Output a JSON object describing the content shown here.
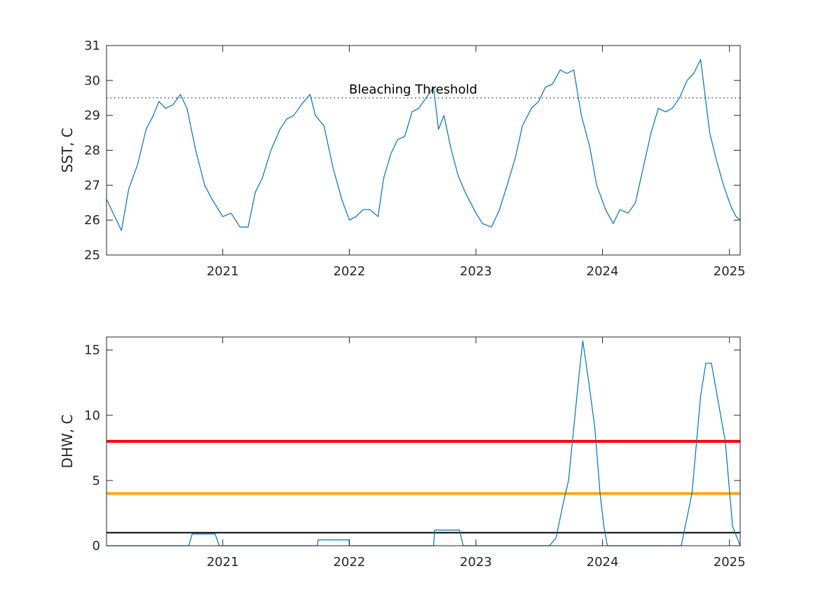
{
  "colors": {
    "series": "#0072bd",
    "threshold_dotted": "#1f1f9f",
    "alert_red": "#ff0000",
    "alert_orange": "#ffa500",
    "alert_black": "#000000",
    "axis": "#262626"
  },
  "chart_data": [
    {
      "type": "line",
      "xlabel": "",
      "ylabel": "SST, C",
      "xlim": [
        "2020-02-01",
        "2025-02-01"
      ],
      "ylim": [
        25,
        31
      ],
      "x_ticks": [
        {
          "date": "2021-01-01",
          "label": "2021"
        },
        {
          "date": "2022-01-01",
          "label": "2022"
        },
        {
          "date": "2023-01-01",
          "label": "2023"
        },
        {
          "date": "2024-01-01",
          "label": "2024"
        },
        {
          "date": "2025-01-01",
          "label": "2025"
        }
      ],
      "y_ticks": [
        {
          "value": 25,
          "label": "25"
        },
        {
          "value": 26,
          "label": "26"
        },
        {
          "value": 27,
          "label": "27"
        },
        {
          "value": 28,
          "label": "28"
        },
        {
          "value": 29,
          "label": "29"
        },
        {
          "value": 30,
          "label": "30"
        },
        {
          "value": 31,
          "label": "31"
        }
      ],
      "grid": false,
      "series": [
        {
          "x": [
            "2020-02-01",
            "2020-02-20",
            "2020-03-15",
            "2020-04-05",
            "2020-05-01",
            "2020-05-25",
            "2020-06-15",
            "2020-07-01",
            "2020-07-20",
            "2020-08-10",
            "2020-09-01",
            "2020-09-20",
            "2020-10-15",
            "2020-11-10",
            "2020-12-01",
            "2021-01-01",
            "2021-01-25",
            "2021-02-20",
            "2021-03-15",
            "2021-04-05",
            "2021-04-25",
            "2021-05-20",
            "2021-06-15",
            "2021-07-05",
            "2021-07-25",
            "2021-08-15",
            "2021-09-10",
            "2021-09-25",
            "2021-10-20",
            "2021-11-15",
            "2021-12-10",
            "2022-01-01",
            "2022-01-20",
            "2022-02-10",
            "2022-03-01",
            "2022-03-25",
            "2022-04-10",
            "2022-05-01",
            "2022-05-20",
            "2022-06-10",
            "2022-07-01",
            "2022-07-20",
            "2022-08-10",
            "2022-09-01",
            "2022-09-15",
            "2022-10-01",
            "2022-10-20",
            "2022-11-10",
            "2022-12-01",
            "2023-01-01",
            "2023-01-20",
            "2023-02-15",
            "2023-03-10",
            "2023-04-01",
            "2023-04-25",
            "2023-05-15",
            "2023-06-10",
            "2023-07-01",
            "2023-07-20",
            "2023-08-10",
            "2023-09-01",
            "2023-09-20",
            "2023-10-10",
            "2023-11-01",
            "2023-11-25",
            "2023-12-15",
            "2024-01-10",
            "2024-02-01",
            "2024-02-20",
            "2024-03-15",
            "2024-04-05",
            "2024-04-25",
            "2024-05-20",
            "2024-06-10",
            "2024-07-01",
            "2024-07-20",
            "2024-08-10",
            "2024-09-01",
            "2024-09-20",
            "2024-10-10",
            "2024-10-20",
            "2024-11-05",
            "2024-11-25",
            "2024-12-15",
            "2025-01-05",
            "2025-01-20",
            "2025-02-01"
          ],
          "values": [
            26.6,
            26.2,
            25.7,
            26.9,
            27.6,
            28.6,
            29.0,
            29.4,
            29.2,
            29.3,
            29.6,
            29.2,
            28.0,
            27.0,
            26.6,
            26.1,
            26.2,
            25.8,
            25.8,
            26.8,
            27.2,
            28.0,
            28.6,
            28.9,
            29.0,
            29.3,
            29.6,
            29.0,
            28.7,
            27.5,
            26.6,
            26.0,
            26.1,
            26.3,
            26.3,
            26.1,
            27.2,
            27.9,
            28.3,
            28.4,
            29.1,
            29.2,
            29.5,
            29.8,
            28.6,
            29.0,
            28.1,
            27.3,
            26.8,
            26.2,
            25.9,
            25.8,
            26.3,
            27.0,
            27.8,
            28.7,
            29.2,
            29.4,
            29.8,
            29.9,
            30.3,
            30.2,
            30.3,
            29.0,
            28.1,
            27.0,
            26.3,
            25.9,
            26.3,
            26.2,
            26.5,
            27.4,
            28.5,
            29.2,
            29.1,
            29.2,
            29.5,
            30.0,
            30.2,
            30.6,
            29.8,
            28.5,
            27.7,
            27.0,
            26.4,
            26.1,
            26.0
          ]
        }
      ],
      "reference_lines": [
        {
          "value": 29.5,
          "style": "dotted"
        }
      ],
      "annotations": [
        {
          "text": "Bleaching Threshold",
          "x": "2021-12-31",
          "y": 29.75
        }
      ]
    },
    {
      "type": "line",
      "xlabel": "",
      "ylabel": "DHW, C",
      "xlim": [
        "2020-02-01",
        "2025-02-01"
      ],
      "ylim": [
        0,
        16
      ],
      "x_ticks": [
        {
          "date": "2021-01-01",
          "label": "2021"
        },
        {
          "date": "2022-01-01",
          "label": "2022"
        },
        {
          "date": "2023-01-01",
          "label": "2023"
        },
        {
          "date": "2024-01-01",
          "label": "2024"
        },
        {
          "date": "2025-01-01",
          "label": "2025"
        }
      ],
      "y_ticks": [
        {
          "value": 0,
          "label": "0"
        },
        {
          "value": 5,
          "label": "5"
        },
        {
          "value": 10,
          "label": "10"
        },
        {
          "value": 15,
          "label": "15"
        }
      ],
      "grid": false,
      "series": [
        {
          "x": [
            "2020-02-01",
            "2020-09-25",
            "2020-10-05",
            "2020-12-10",
            "2020-12-22",
            "2021-10-01",
            "2021-10-03",
            "2021-12-31",
            "2022-01-01",
            "2022-09-01",
            "2022-09-04",
            "2022-11-15",
            "2022-11-25",
            "2023-08-01",
            "2023-08-20",
            "2023-09-10",
            "2023-09-25",
            "2023-10-25",
            "2023-11-05",
            "2023-11-20",
            "2023-12-10",
            "2023-12-25",
            "2024-01-05",
            "2024-01-15",
            "2024-08-15",
            "2024-09-15",
            "2024-10-10",
            "2024-10-25",
            "2024-11-10",
            "2024-12-20",
            "2025-01-10",
            "2025-02-01"
          ],
          "values": [
            0,
            0,
            0.9,
            0.9,
            0,
            0,
            0.45,
            0.45,
            0,
            0,
            1.2,
            1.2,
            0,
            0,
            0.6,
            3.3,
            5.0,
            13.0,
            15.7,
            13.0,
            9.0,
            4.0,
            1.5,
            0,
            0,
            4.0,
            11.5,
            14.0,
            14.0,
            8.0,
            1.5,
            0
          ]
        }
      ],
      "reference_lines": [
        {
          "value": 8,
          "color": "#ff0000"
        },
        {
          "value": 4,
          "color": "#ffa500"
        },
        {
          "value": 1,
          "color": "#000000"
        }
      ]
    }
  ]
}
